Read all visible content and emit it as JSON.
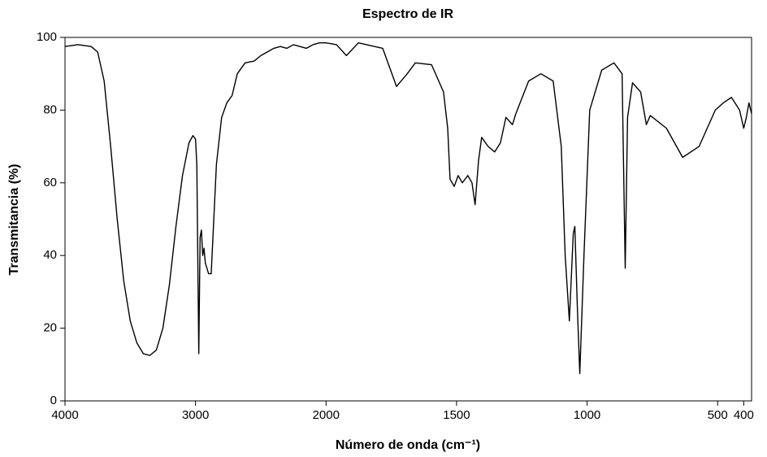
{
  "chart_data": {
    "type": "line",
    "title": "Espectro de IR",
    "xlabel": "Número de onda (cm⁻¹)",
    "ylabel": "Transmitancia (%)",
    "xlim": [
      4000,
      370
    ],
    "x_scale_break": 2000,
    "xticks": [
      4000,
      3000,
      2000,
      1500,
      1000,
      500,
      400
    ],
    "ylim": [
      0,
      100
    ],
    "yticks": [
      0,
      20,
      40,
      60,
      80,
      100
    ],
    "color": "#000000",
    "grid": false,
    "x": [
      4000,
      3900,
      3800,
      3750,
      3700,
      3650,
      3600,
      3550,
      3500,
      3450,
      3400,
      3350,
      3300,
      3250,
      3200,
      3150,
      3100,
      3050,
      3020,
      3000,
      2990,
      2975,
      2965,
      2955,
      2945,
      2935,
      2925,
      2900,
      2880,
      2860,
      2840,
      2800,
      2760,
      2720,
      2680,
      2620,
      2550,
      2500,
      2450,
      2400,
      2350,
      2300,
      2250,
      2200,
      2150,
      2100,
      2050,
      2000,
      1960,
      1922,
      1876,
      1783,
      1730,
      1689,
      1658,
      1596,
      1550,
      1534,
      1525,
      1509,
      1494,
      1478,
      1457,
      1441,
      1429,
      1416,
      1404,
      1379,
      1354,
      1332,
      1311,
      1286,
      1273,
      1224,
      1177,
      1130,
      1099,
      1084,
      1068,
      1053,
      1047,
      1037,
      1028,
      1012,
      990,
      944,
      897,
      866,
      854,
      845,
      826,
      795,
      773,
      758,
      696,
      634,
      571,
      509,
      478,
      447,
      416,
      400,
      390,
      380,
      370
    ],
    "values": [
      97.5,
      98,
      97.5,
      96,
      88,
      70,
      50,
      33,
      22,
      16,
      13,
      12.5,
      14,
      20,
      32,
      48,
      62,
      71,
      73,
      72,
      65,
      13,
      45,
      47,
      40,
      42,
      38,
      35,
      35,
      50,
      65,
      78,
      82,
      84,
      90,
      93,
      93.5,
      95,
      96,
      97,
      97.5,
      97,
      98,
      97.5,
      97,
      98,
      98.5,
      98.5,
      98,
      95,
      98.5,
      97,
      86.5,
      90,
      93,
      92.5,
      85,
      75,
      61,
      59,
      62,
      60,
      62,
      60,
      54,
      66,
      72.5,
      70,
      68.5,
      71,
      78,
      76,
      79,
      88,
      90,
      88,
      70,
      40,
      22,
      46,
      48,
      25,
      7.5,
      40,
      80,
      91,
      93,
      90,
      36.5,
      78,
      87.5,
      85,
      76,
      78.5,
      75,
      67,
      70,
      80,
      82,
      83.5,
      80,
      75,
      78,
      82,
      79
    ]
  }
}
